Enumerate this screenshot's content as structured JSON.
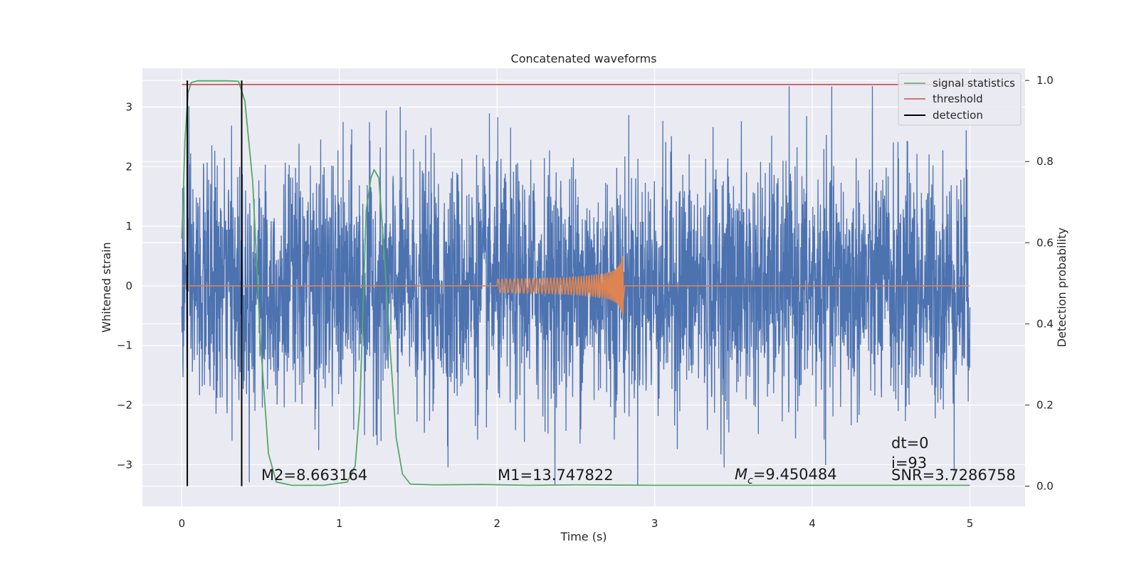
{
  "chart_data": {
    "type": "line",
    "title": "Concatenated waveforms",
    "xlabel": "Time (s)",
    "ylabel": "Whitened strain",
    "y2label": "Detection probability",
    "xlim": [
      -0.25,
      5.35
    ],
    "ylim": [
      -3.7,
      3.65
    ],
    "y2lim": [
      -0.05,
      1.03
    ],
    "x_ticks": [
      0,
      1,
      2,
      3,
      4,
      5
    ],
    "y_ticks": [
      -3,
      -2,
      -1,
      0,
      1,
      2,
      3
    ],
    "y2_ticks": [
      0.0,
      0.2,
      0.4,
      0.6,
      0.8,
      1.0
    ],
    "x_tick_labels": [
      "0",
      "1",
      "2",
      "3",
      "4",
      "5"
    ],
    "y_tick_labels": [
      "−3",
      "−2",
      "−1",
      "0",
      "1",
      "2",
      "3"
    ],
    "y2_tick_labels": [
      "0.0",
      "0.2",
      "0.4",
      "0.6",
      "0.8",
      "1.0"
    ],
    "grid": true,
    "legend_position": "top-right",
    "series": [
      {
        "name": "",
        "axis": "left",
        "color": "#4c72b0",
        "kind": "noise",
        "x_range": [
          0,
          5
        ],
        "rms": 0.75,
        "max_abs": 3.35
      },
      {
        "name": "",
        "axis": "left",
        "color": "#dd8452",
        "kind": "chirp",
        "x_range": [
          0,
          5
        ],
        "chirp_start": 2.0,
        "chirp_end": 2.8,
        "peak_amplitude": 0.5
      },
      {
        "name": "signal statistics",
        "axis": "right",
        "color": "#55a868",
        "x": [
          0.0,
          0.02,
          0.04,
          0.06,
          0.1,
          0.2,
          0.3,
          0.36,
          0.4,
          0.45,
          0.5,
          0.55,
          0.6,
          0.7,
          0.9,
          1.05,
          1.1,
          1.13,
          1.17,
          1.2,
          1.22,
          1.25,
          1.28,
          1.32,
          1.36,
          1.4,
          1.45,
          1.6,
          1.9,
          2.2,
          2.5,
          3.0,
          4.0,
          5.0
        ],
        "y": [
          0.61,
          0.85,
          0.97,
          0.995,
          0.999,
          0.999,
          0.999,
          0.998,
          0.95,
          0.75,
          0.35,
          0.08,
          0.01,
          0.002,
          0.002,
          0.01,
          0.05,
          0.2,
          0.68,
          0.76,
          0.78,
          0.76,
          0.6,
          0.35,
          0.12,
          0.03,
          0.005,
          0.003,
          0.004,
          0.002,
          0.003,
          0.002,
          0.002,
          0.002
        ]
      },
      {
        "name": "threshold",
        "axis": "right",
        "color": "#c44e52",
        "x": [
          0.0,
          5.0
        ],
        "y": [
          0.99,
          0.99
        ]
      },
      {
        "name": "detection",
        "axis": "right",
        "color": "#000000",
        "vlines_x": [
          0.035,
          0.38
        ],
        "y_range": [
          0.0,
          1.0
        ]
      }
    ],
    "annotations": {
      "m2": "M2=8.663164",
      "m1": "M1=13.747822",
      "mc_symbol": "M",
      "mc_sub": "c",
      "mc_value": "=9.450484",
      "dt": "dt=0",
      "i": "i=93",
      "snr": "SNR=3.7286758"
    },
    "colors": {
      "plot_background": "#eaeaf2",
      "grid": "#ffffff"
    }
  }
}
